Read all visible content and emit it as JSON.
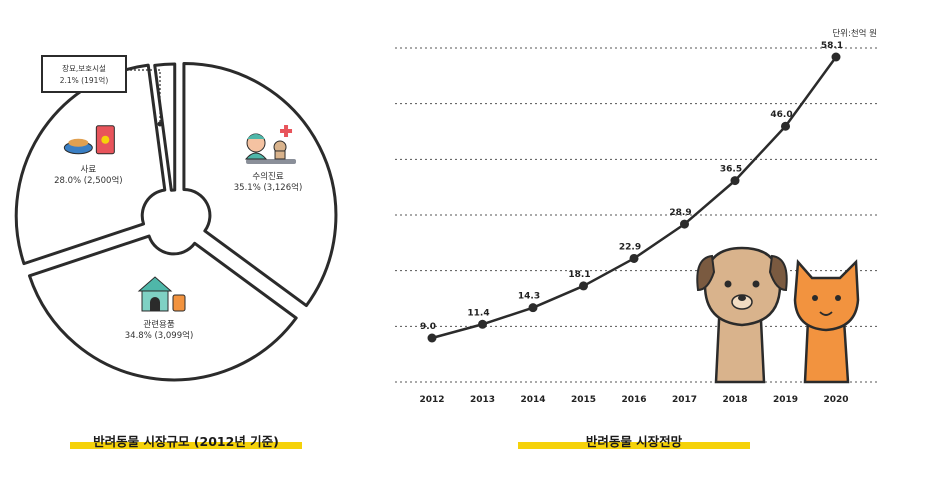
{
  "pie_caption": "반려동물 시장규모 (2012년 기준)",
  "line_caption": "반려동물 시장전망",
  "unit_label": "단위:천억 원",
  "chart_data": [
    {
      "type": "pie",
      "slices": [
        {
          "label": "수의진료",
          "pct": 35.1,
          "display_pct": "35.1%",
          "amount": "(3,126억)",
          "icon": "veterinary-icon"
        },
        {
          "label": "관련용품",
          "pct": 34.8,
          "display_pct": "34.8%",
          "amount": "(3,099억)",
          "icon": "pet-house-icon"
        },
        {
          "label": "사료",
          "pct": 28.0,
          "display_pct": "28.0%",
          "amount": "(2,500억)",
          "icon": "pet-food-icon"
        },
        {
          "label": "장묘,보호시설",
          "pct": 2.1,
          "display_pct": "2.1%",
          "amount": "(191억)",
          "icon": null
        }
      ]
    },
    {
      "type": "line",
      "x": [
        "2012",
        "2013",
        "2014",
        "2015",
        "2016",
        "2017",
        "2018",
        "2019",
        "2020"
      ],
      "values": [
        9.0,
        11.4,
        14.3,
        18.1,
        22.9,
        28.9,
        36.5,
        46.0,
        58.1
      ],
      "value_labels": [
        "9.0",
        "11.4",
        "14.3",
        "18.1",
        "22.9",
        "28.9",
        "36.5",
        "46.0",
        "58.1"
      ],
      "ylim": [
        0,
        62
      ],
      "grid": true,
      "decoration": "dog-and-cat-illustration"
    }
  ],
  "colors": {
    "highlight": "#f5d20a",
    "outline": "#2b2b2b",
    "dog": "#d9b38c",
    "cat": "#f2933f",
    "house": "#4fb7a9"
  }
}
